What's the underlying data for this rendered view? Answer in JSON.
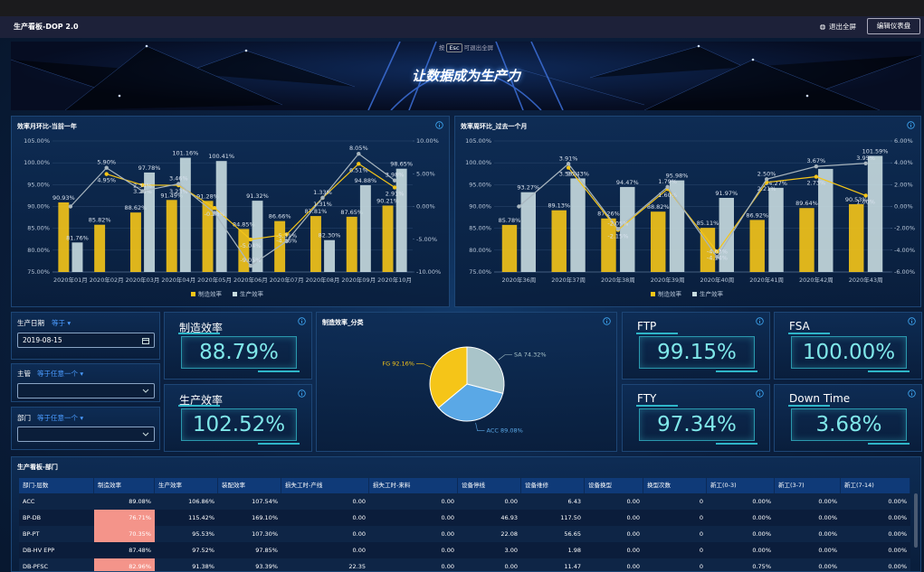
{
  "header": {
    "title": "生产看板-DOP 2.0",
    "exit": "退出全屏",
    "edit": "编辑仪表盘"
  },
  "banner": {
    "hint_press": "按",
    "hint_key": "Esc",
    "hint_text": "可退出全屏",
    "slogan": "让数据成为生产力"
  },
  "chart_data": [
    {
      "type": "combo",
      "title": "效率月环比-当前一年",
      "categories": [
        "2020年01月",
        "2020年02月",
        "2020年03月",
        "2020年04月",
        "2020年05月",
        "2020年06月",
        "2020年07月",
        "2020年08月",
        "2020年09月",
        "2020年10月"
      ],
      "series": [
        {
          "name": "制造效率",
          "type": "bar",
          "color": "#f5c518",
          "values": [
            90.93,
            85.82,
            88.62,
            91.49,
            91.28,
            84.85,
            86.66,
            87.81,
            87.65,
            90.21
          ],
          "value_labels": [
            "90.93%",
            "85.82%",
            "88.62%",
            "91.49%",
            "91.28%",
            "84.85%",
            "86.66%",
            "87.81%",
            "87.65%",
            "90.21%"
          ]
        },
        {
          "name": "生产效率",
          "type": "bar",
          "color": "#c8dce0",
          "values": [
            81.76,
            null,
            97.78,
            101.16,
            100.41,
            91.32,
            null,
            82.3,
            94.88,
            98.65
          ],
          "value_labels": [
            "81.76%",
            null,
            "97.78%",
            "101.16%",
            "100.41%",
            "91.32%",
            null,
            "82.30%",
            "94.88%",
            "98.65%"
          ]
        },
        {
          "type": "line",
          "axis": "y2",
          "color": "#f5c518",
          "values": [
            null,
            4.95,
            3.26,
            3.23,
            -0.23,
            -5.04,
            -4.26,
            1.31,
            6.51,
            2.91
          ],
          "value_labels": [
            null,
            "4.95%",
            "3.26%",
            "3.23%",
            "-0.23%",
            "-5.04%",
            "-4.26%",
            "1.31%",
            "6.51%",
            "2.91%"
          ]
        },
        {
          "type": "line",
          "axis": "y2",
          "color": "#a9b6bf",
          "values": [
            0,
            5.9,
            2.34,
            3.46,
            -0.98,
            -9.05,
            -5.31,
            1.33,
            8.05,
            3.98
          ],
          "value_labels": [
            null,
            "5.90%",
            "2.34%",
            "3.46%",
            null,
            "-9.05%",
            "-5.31%",
            "1.33%",
            "8.05%",
            "3.98%"
          ]
        }
      ],
      "ylim": [
        75,
        105
      ],
      "yticks": [
        {
          "value": 75,
          "label": "75.00%"
        },
        {
          "value": 80,
          "label": "80.00%"
        },
        {
          "value": 85,
          "label": "85.00%"
        },
        {
          "value": 90,
          "label": "90.00%"
        },
        {
          "value": 95,
          "label": "95.00%"
        },
        {
          "value": 100,
          "label": "100.00%"
        },
        {
          "value": 105,
          "label": "105.00%"
        }
      ],
      "y2lim": [
        -10,
        10
      ],
      "y2ticks": [
        {
          "value": -10,
          "label": "-10.00%"
        },
        {
          "value": -5,
          "label": "-5.00%"
        },
        {
          "value": 0,
          "label": "0.00%"
        },
        {
          "value": 5,
          "label": "5.00%"
        },
        {
          "value": 10,
          "label": "10.00%"
        }
      ],
      "grid": true,
      "legend": "bottom"
    },
    {
      "type": "combo",
      "title": "效率周环比_过去一个月",
      "categories": [
        "2020年36周",
        "2020年37周",
        "2020年38周",
        "2020年39周",
        "2020年40周",
        "2020年41周",
        "2020年42周",
        "2020年43周"
      ],
      "series": [
        {
          "name": "制造效率",
          "type": "bar",
          "color": "#f5c518",
          "values": [
            85.78,
            89.13,
            87.26,
            88.82,
            85.11,
            86.92,
            89.64,
            90.53
          ],
          "value_labels": [
            "85.78%",
            "89.13%",
            "87.26%",
            "88.82%",
            "85.11%",
            "86.92%",
            "89.64%",
            "90.53%"
          ]
        },
        {
          "name": "生产效率",
          "type": "bar",
          "color": "#c8dce0",
          "values": [
            93.27,
            96.43,
            94.47,
            95.98,
            91.97,
            94.27,
            98.6,
            101.59
          ],
          "value_labels": [
            "93.27%",
            "96.43%",
            "94.47%",
            "95.98%",
            "91.97%",
            "94.27%",
            null,
            "101.59%"
          ]
        },
        {
          "type": "line",
          "axis": "y2",
          "color": "#f5c518",
          "values": [
            null,
            3.55,
            -2.15,
            1.6,
            -4.14,
            2.21,
            2.73,
            1
          ],
          "value_labels": [
            null,
            "3.55%",
            "-2.15%",
            "1.60%",
            "-4.14%",
            "2.21%",
            "2.73%",
            "1.00%"
          ]
        },
        {
          "type": "line",
          "axis": "y2",
          "color": "#a9b6bf",
          "values": [
            0,
            3.91,
            -2.05,
            1.79,
            -4.63,
            2.5,
            3.67,
            3.95
          ],
          "value_labels": [
            null,
            "3.91%",
            "-2.05%",
            "1.79%",
            "-4.63%",
            "2.50%",
            "3.67%",
            "3.95%"
          ]
        }
      ],
      "ylim": [
        75,
        105
      ],
      "yticks": [
        {
          "value": 75,
          "label": "75.00%"
        },
        {
          "value": 80,
          "label": "80.00%"
        },
        {
          "value": 85,
          "label": "85.00%"
        },
        {
          "value": 90,
          "label": "90.00%"
        },
        {
          "value": 95,
          "label": "95.00%"
        },
        {
          "value": 100,
          "label": "100.00%"
        },
        {
          "value": 105,
          "label": "105.00%"
        }
      ],
      "y2lim": [
        -6,
        6
      ],
      "y2ticks": [
        {
          "value": -6,
          "label": "-6.00%"
        },
        {
          "value": -4,
          "label": "-4.00%"
        },
        {
          "value": -2,
          "label": "-2.00%"
        },
        {
          "value": 0,
          "label": "0.00%"
        },
        {
          "value": 2,
          "label": "2.00%"
        },
        {
          "value": 4,
          "label": "4.00%"
        },
        {
          "value": 6,
          "label": "6.00%"
        }
      ],
      "grid": true,
      "legend": "bottom"
    },
    {
      "type": "pie",
      "title": "制造效率_分类",
      "categories": [
        "SA",
        "ACC",
        "FG"
      ],
      "values": [
        74.32,
        89.08,
        92.16
      ],
      "value_labels": [
        "74.32%",
        "89.08%",
        "92.16%"
      ],
      "colors": [
        "#a9c4c9",
        "#5aa8e6",
        "#f5c518"
      ]
    }
  ],
  "filters": [
    {
      "label": "生产日期",
      "operator": "等于",
      "value": "2019-08-15"
    },
    {
      "label": "主管",
      "operator": "等于任意一个"
    },
    {
      "label": "部门",
      "operator": "等于任意一个"
    }
  ],
  "kpis": [
    {
      "title": "制造效率",
      "value": "88.79%"
    },
    {
      "title": "生产效率",
      "value": "102.52%"
    },
    {
      "title": "FTP",
      "value": "99.15%"
    },
    {
      "title": "FSA",
      "value": "100.00%"
    },
    {
      "title": "FTY",
      "value": "97.34%"
    },
    {
      "title": "Down Time",
      "value": "3.68%"
    }
  ],
  "table": {
    "title": "生产看板-部门",
    "columns": [
      "部门-层数",
      "制造效率",
      "生产效率",
      "装配效率",
      "损失工时-产线",
      "损失工时-来料",
      "设备停线",
      "设备维修",
      "设备换型",
      "换型次数",
      "新工(0-3)",
      "新工(3-7)",
      "新工(7-14)"
    ],
    "rows": [
      [
        "ACC",
        "89.08%",
        "106.86%",
        "107.54%",
        "0.00",
        "0.00",
        "0.00",
        "6.43",
        "0.00",
        "0",
        "0.00%",
        "0.00%",
        "0.00%"
      ],
      [
        "BP-DB",
        "76.71%",
        "115.42%",
        "169.10%",
        "0.00",
        "0.00",
        "46.93",
        "117.50",
        "0.00",
        "0",
        "0.00%",
        "0.00%",
        "0.00%"
      ],
      [
        "BP-PT",
        "70.35%",
        "95.53%",
        "107.30%",
        "0.00",
        "0.00",
        "22.08",
        "56.65",
        "0.00",
        "0",
        "0.00%",
        "0.00%",
        "0.00%"
      ],
      [
        "DB-HV EPP",
        "87.48%",
        "97.52%",
        "97.85%",
        "0.00",
        "0.00",
        "3.00",
        "1.98",
        "0.00",
        "0",
        "0.00%",
        "0.00%",
        "0.00%"
      ],
      [
        "DB-PFSC",
        "82.96%",
        "91.38%",
        "93.39%",
        "22.35",
        "0.00",
        "0.00",
        "11.47",
        "0.00",
        "0",
        "0.75%",
        "0.00%",
        "0.00%"
      ]
    ],
    "highlight_color": "#f4948a",
    "highlighted": [
      [
        1,
        1
      ],
      [
        2,
        1
      ],
      [
        4,
        1
      ]
    ]
  }
}
